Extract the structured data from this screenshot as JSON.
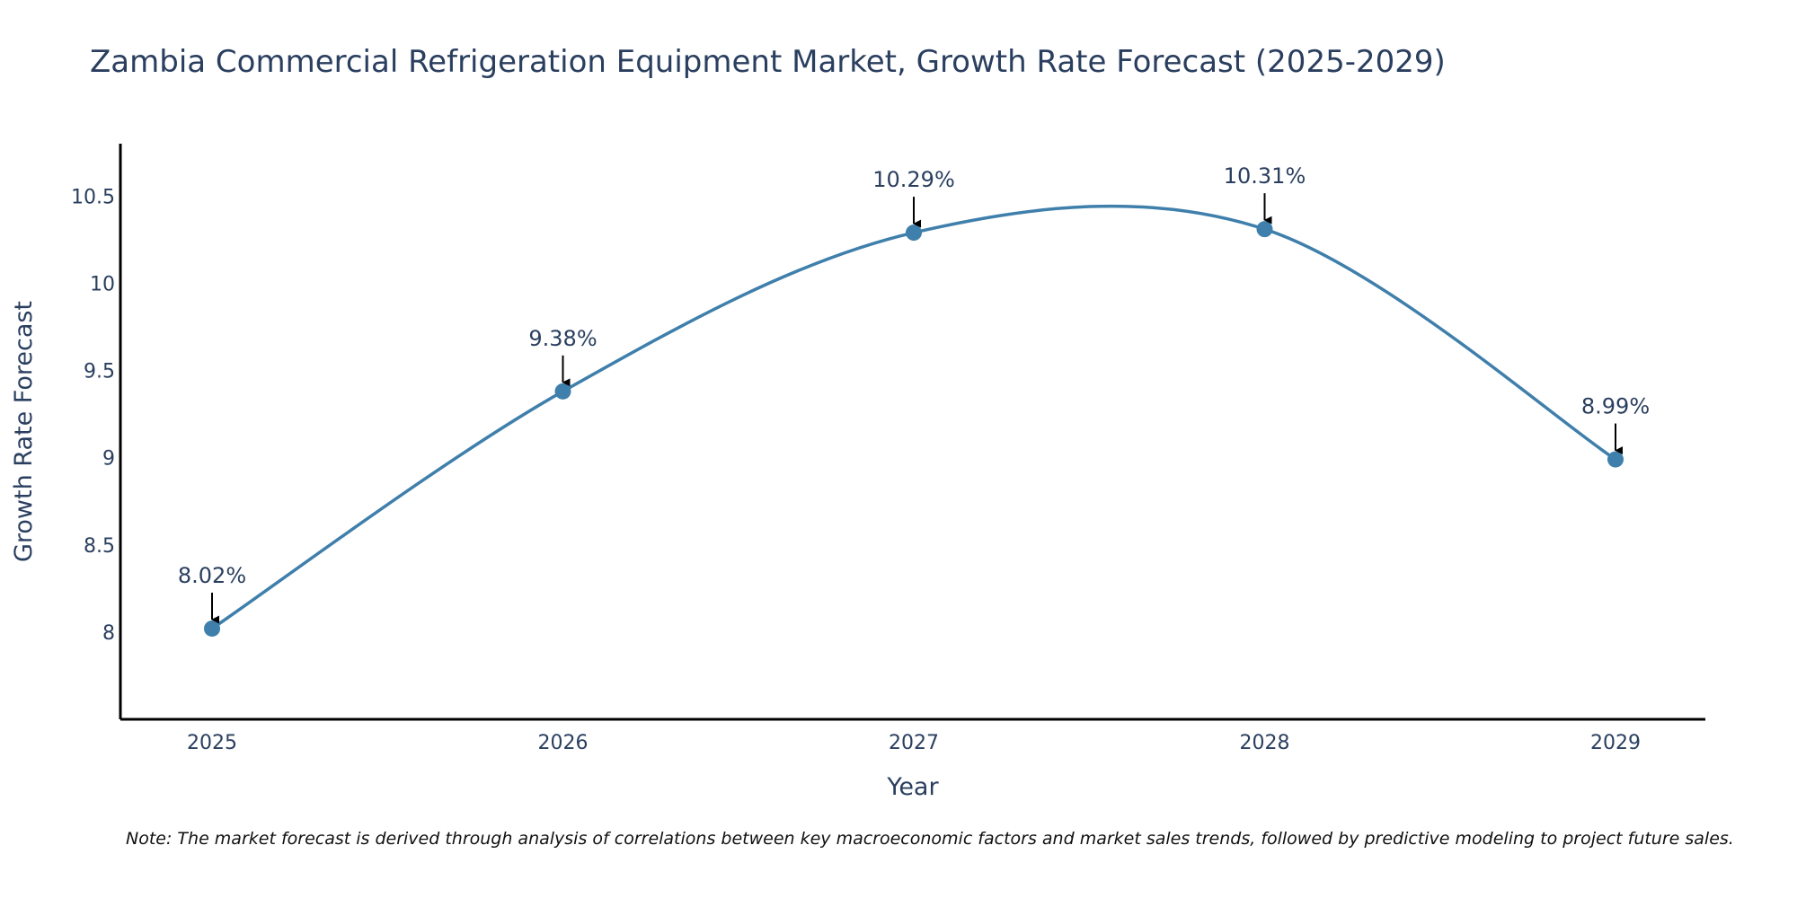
{
  "chart_data": {
    "type": "line",
    "title": "Zambia Commercial Refrigeration Equipment Market, Growth Rate Forecast (2025-2029)",
    "xlabel": "Year",
    "ylabel": "Growth Rate Forecast",
    "categories": [
      "2025",
      "2026",
      "2027",
      "2028",
      "2029"
    ],
    "series": [
      {
        "name": "Growth Rate Forecast",
        "values": [
          8.02,
          9.38,
          10.29,
          10.31,
          8.99
        ]
      }
    ],
    "data_labels": [
      "8.02%",
      "9.38%",
      "10.29%",
      "10.31%",
      "8.99%"
    ],
    "y_ticks": [
      8,
      8.5,
      9,
      9.5,
      10,
      10.5
    ],
    "y_tick_labels": [
      "8",
      "8.5",
      "9",
      "9.5",
      "10",
      "10.5"
    ],
    "ylim": [
      7.5,
      10.8
    ],
    "grid": false,
    "line_shape": "spline",
    "colors": {
      "line": "#3f7fab",
      "marker": "#3f7fab",
      "arrow": "#000000",
      "axis": "#000000"
    },
    "note": "Note: The market forecast is derived through analysis of correlations between key macroeconomic factors and market sales trends, followed by predictive modeling to project future sales."
  }
}
